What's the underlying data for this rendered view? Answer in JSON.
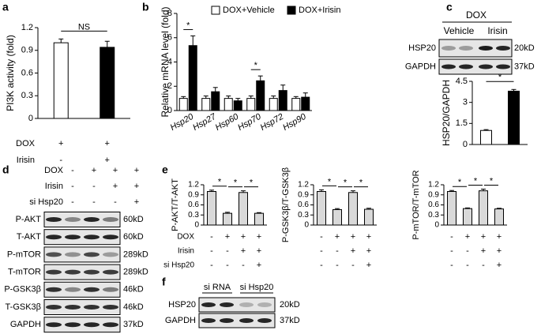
{
  "panel_labels": [
    "a",
    "b",
    "c",
    "d",
    "e",
    "f"
  ],
  "chart_data": [
    {
      "type": "bar",
      "ylabel": "PI3K activity (fold)",
      "ylim": [
        0,
        1.2
      ],
      "yticks": [
        0,
        0.3,
        0.6,
        0.9,
        1.2
      ],
      "values": [
        1.0,
        0.94
      ],
      "errors": [
        0.05,
        0.08
      ],
      "colors": [
        "#ffffff",
        "#000000"
      ],
      "annotation": "NS",
      "conditions": [
        {
          "label": "DOX",
          "signs": [
            "+",
            "+"
          ]
        },
        {
          "label": "Irisin",
          "signs": [
            "-",
            "+"
          ]
        }
      ]
    },
    {
      "type": "grouped_bar",
      "ylabel": "Relative mRNA level (fold)",
      "ylim": [
        0,
        8
      ],
      "yticks": [
        0,
        2,
        4,
        6,
        8
      ],
      "categories": [
        "Hsp20",
        "Hsp27",
        "Hsp60",
        "Hsp70",
        "Hsp72",
        "Hsp90"
      ],
      "series": [
        {
          "name": "DOX+Vehicle",
          "color": "#ffffff",
          "values": [
            1.0,
            1.0,
            1.0,
            1.0,
            1.0,
            1.0
          ],
          "errors": [
            0.15,
            0.2,
            0.2,
            0.2,
            0.2,
            0.15
          ]
        },
        {
          "name": "DOX+Irisin",
          "color": "#000000",
          "values": [
            5.35,
            1.55,
            0.8,
            2.45,
            1.65,
            1.1
          ],
          "errors": [
            0.8,
            0.35,
            0.2,
            0.4,
            0.45,
            0.35
          ]
        }
      ],
      "annotations": [
        "*",
        null,
        null,
        "*",
        null,
        null
      ]
    },
    {
      "type": "bar",
      "ylabel": "HSP20/GAPDH",
      "ylim": [
        0,
        4.5
      ],
      "yticks": [
        0,
        1.5,
        3,
        4.5
      ],
      "values": [
        1.0,
        3.8
      ],
      "errors": [
        0.06,
        0.12
      ],
      "colors": [
        "#ffffff",
        "#000000"
      ],
      "annotation": "*"
    },
    {
      "type": "bar",
      "ylabel": "P-AKT/T-AKT",
      "ylim": [
        0,
        1.2
      ],
      "yticks": [
        0,
        0.3,
        0.6,
        0.9,
        1.2
      ],
      "values": [
        1.0,
        0.35,
        0.97,
        0.35
      ],
      "errors": [
        0.04,
        0.03,
        0.05,
        0.02
      ],
      "color": "#d9d9d9",
      "annotations": [
        "*",
        "*",
        "*"
      ],
      "conditions": [
        {
          "label": "DOX",
          "signs": [
            "-",
            "+",
            "+",
            "+"
          ]
        },
        {
          "label": "Irisin",
          "signs": [
            "-",
            "-",
            "+",
            "+"
          ]
        },
        {
          "label": "si Hsp20",
          "signs": [
            "-",
            "-",
            "-",
            "+"
          ]
        }
      ]
    },
    {
      "type": "bar",
      "ylabel": "P-GSK3β/T-GSK3β",
      "ylim": [
        0,
        1.2
      ],
      "yticks": [
        0,
        0.3,
        0.6,
        0.9,
        1.2
      ],
      "values": [
        1.0,
        0.46,
        0.97,
        0.47
      ],
      "errors": [
        0.05,
        0.03,
        0.05,
        0.03
      ],
      "color": "#d9d9d9",
      "annotations": [
        "*",
        "*",
        "*"
      ],
      "conditions": [
        {
          "signs": [
            "-",
            "+",
            "+",
            "+"
          ]
        },
        {
          "signs": [
            "-",
            "-",
            "+",
            "+"
          ]
        },
        {
          "signs": [
            "-",
            "-",
            "-",
            "+"
          ]
        }
      ]
    },
    {
      "type": "bar",
      "ylabel": "P-mTOR/T-mTOR",
      "ylim": [
        0,
        1.2
      ],
      "yticks": [
        0,
        0.3,
        0.6,
        0.9,
        1.2
      ],
      "values": [
        1.0,
        0.49,
        1.02,
        0.48
      ],
      "errors": [
        0.03,
        0.02,
        0.05,
        0.02
      ],
      "color": "#d9d9d9",
      "annotations": [
        "*",
        "*",
        "*"
      ],
      "conditions": [
        {
          "signs": [
            "-",
            "+",
            "+",
            "+"
          ]
        },
        {
          "signs": [
            "-",
            "-",
            "+",
            "+"
          ]
        },
        {
          "signs": [
            "-",
            "-",
            "-",
            "+"
          ]
        }
      ]
    }
  ],
  "blots": {
    "c": {
      "group": "DOX",
      "lanes": [
        "Vehicle",
        "Irisin"
      ],
      "rows": [
        {
          "protein": "HSP20",
          "size": "20kD"
        },
        {
          "protein": "GAPDH",
          "size": "37kD"
        }
      ]
    },
    "d": {
      "conditions": [
        {
          "label": "DOX",
          "signs": [
            "-",
            "+",
            "+",
            "+"
          ]
        },
        {
          "label": "Irisin",
          "signs": [
            "-",
            "-",
            "+",
            "+"
          ]
        },
        {
          "label": "si Hsp20",
          "signs": [
            "-",
            "-",
            "-",
            "+"
          ]
        }
      ],
      "rows": [
        {
          "protein": "P-AKT",
          "size": "60kD"
        },
        {
          "protein": "T-AKT",
          "size": "60kD"
        },
        {
          "protein": "P-mTOR",
          "size": "289kD"
        },
        {
          "protein": "T-mTOR",
          "size": "289kD"
        },
        {
          "protein": "P-GSK3β",
          "size": "46kD"
        },
        {
          "protein": "T-GSK3β",
          "size": "46kD"
        },
        {
          "protein": "GAPDH",
          "size": "37kD"
        }
      ]
    },
    "f": {
      "lanes": [
        "si RNA",
        "si Hsp20"
      ],
      "rows": [
        {
          "protein": "HSP20",
          "size": "20kD"
        },
        {
          "protein": "GAPDH",
          "size": "37kD"
        }
      ]
    }
  }
}
